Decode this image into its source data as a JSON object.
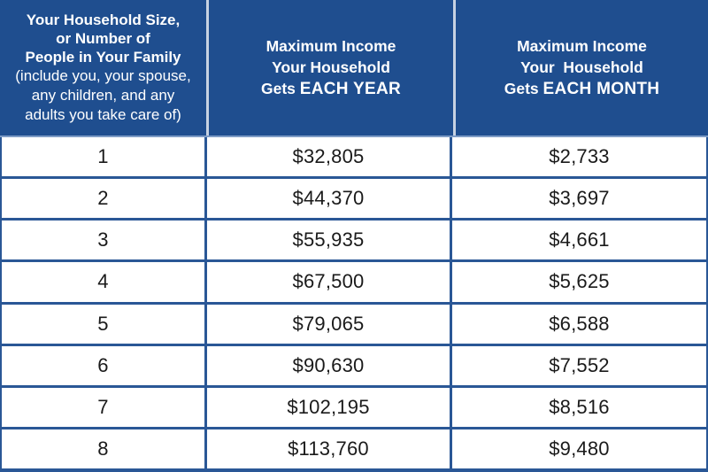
{
  "table": {
    "header": {
      "household": {
        "title": "Your Household Size,\nor Number of\nPeople in Your Family",
        "subtitle": "(include you, your spouse,\nany children, and any\nadults you take care of)"
      },
      "year": {
        "line1": "Maximum Income",
        "line2": "Your Household",
        "line3_prefix": "Gets ",
        "line3_strong": "EACH YEAR"
      },
      "month": {
        "line1": "Maximum Income",
        "line2": "Your  Household",
        "line3_prefix": "Gets ",
        "line3_strong": "EACH MONTH"
      }
    },
    "rows": [
      {
        "size": "1",
        "year": "$32,805",
        "month": "$2,733"
      },
      {
        "size": "2",
        "year": "$44,370",
        "month": "$3,697"
      },
      {
        "size": "3",
        "year": "$55,935",
        "month": "$4,661"
      },
      {
        "size": "4",
        "year": "$67,500",
        "month": "$5,625"
      },
      {
        "size": "5",
        "year": "$79,065",
        "month": "$6,588"
      },
      {
        "size": "6",
        "year": "$90,630",
        "month": "$7,552"
      },
      {
        "size": "7",
        "year": "$102,195",
        "month": "$8,516"
      },
      {
        "size": "8",
        "year": "$113,760",
        "month": "$9,480"
      }
    ],
    "colors": {
      "header_bg": "#1F4E8F",
      "border_blue": "#2A5796",
      "header_divider": "#C7D2E2",
      "header_text": "#FFFFFF",
      "body_text": "#1A1A1A",
      "body_bg": "#FFFFFF"
    }
  },
  "chart_data": {
    "type": "table",
    "title": "Maximum household income eligibility by household size",
    "columns": [
      "Your Household Size, or Number of People in Your Family (include you, your spouse, any children, and any adults you take care of)",
      "Maximum Income Your Household Gets EACH YEAR",
      "Maximum Income Your Household Gets EACH MONTH"
    ],
    "rows": [
      [
        1,
        32805,
        2733
      ],
      [
        2,
        44370,
        3697
      ],
      [
        3,
        55935,
        4661
      ],
      [
        4,
        67500,
        5625
      ],
      [
        5,
        79065,
        6588
      ],
      [
        6,
        90630,
        7552
      ],
      [
        7,
        102195,
        8516
      ],
      [
        8,
        113760,
        9480
      ]
    ],
    "value_format": "USD"
  }
}
